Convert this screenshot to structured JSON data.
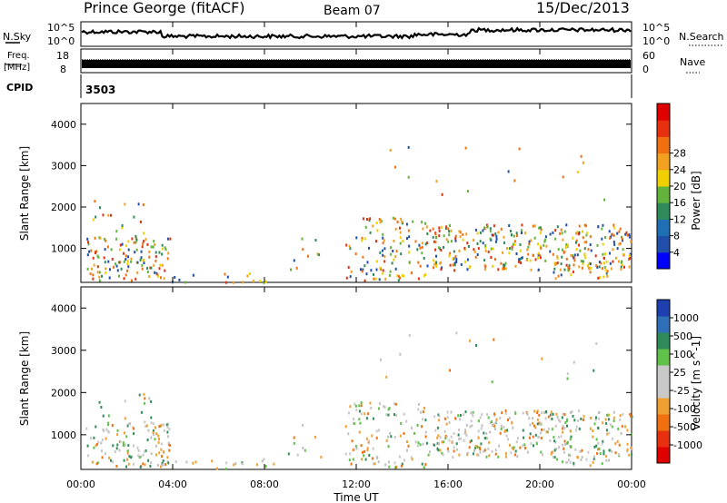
{
  "header": {
    "station": "Prince George (fitACF)",
    "beam": "Beam 07",
    "date": "15/Dec/2013"
  },
  "top_panels": {
    "nsky_label": "N.Sky",
    "nsky_ticks": [
      "10^5",
      "10^0"
    ],
    "nsearch_label": "N.Search",
    "nsearch_ticks": [
      "10^5",
      "10^0"
    ],
    "freq_label_1": "Freq.",
    "freq_label_2": "[MHz]",
    "freq_ticks": [
      "18",
      "8"
    ],
    "nave_label": "Nave",
    "nave_ticks": [
      "60",
      "0"
    ],
    "cpid_label": "CPID",
    "cpid_value": "3503"
  },
  "colors": {
    "power": [
      "#0000ff",
      "#1f4fa8",
      "#1e6fb4",
      "#2e8b57",
      "#61b33c",
      "#f0d000",
      "#f2a020",
      "#f07010",
      "#e83010",
      "#e00000"
    ],
    "velocity": [
      "#1e3faf",
      "#2f6fb8",
      "#2e8b57",
      "#5fc14a",
      "#c8c8c8",
      "#c8c8c8",
      "#f0a030",
      "#f07010",
      "#e83010",
      "#e00000"
    ],
    "data_power": [
      "#1f4fa8",
      "#2e8b57",
      "#61b33c",
      "#f0d000",
      "#f2a020",
      "#f07010",
      "#e03010"
    ],
    "data_velocity": [
      "#c8c8c8",
      "#c8c8c8",
      "#c0c0c0",
      "#5fc14a",
      "#f0a030",
      "#f07010",
      "#2e8b57"
    ]
  },
  "chart_data": [
    {
      "type": "heatmap",
      "name": "power",
      "ylabel": "Slant Range [km]",
      "yticks": [
        "1000",
        "2000",
        "3000",
        "4000"
      ],
      "ylim": [
        180,
        4500
      ],
      "colorbar_label": "Power [dB]",
      "colorbar_ticks": [
        "4",
        "8",
        "12",
        "16",
        "20",
        "24",
        "28"
      ],
      "colorbar_range": [
        0,
        32
      ]
    },
    {
      "type": "heatmap",
      "name": "velocity",
      "ylabel": "Slant Range [km]",
      "yticks": [
        "1000",
        "2000",
        "3000",
        "4000"
      ],
      "ylim": [
        180,
        4500
      ],
      "colorbar_label": "Velocity [m s^-1]",
      "colorbar_ticks": [
        "1000",
        "500",
        "100",
        "25",
        "-25",
        "-100",
        "-500",
        "-1000"
      ]
    }
  ],
  "x_axis": {
    "ticks": [
      "00:00",
      "04:00",
      "08:00",
      "12:00",
      "16:00",
      "20:00",
      "00:00"
    ],
    "label": "Time UT",
    "range_hours": [
      0,
      24
    ]
  }
}
